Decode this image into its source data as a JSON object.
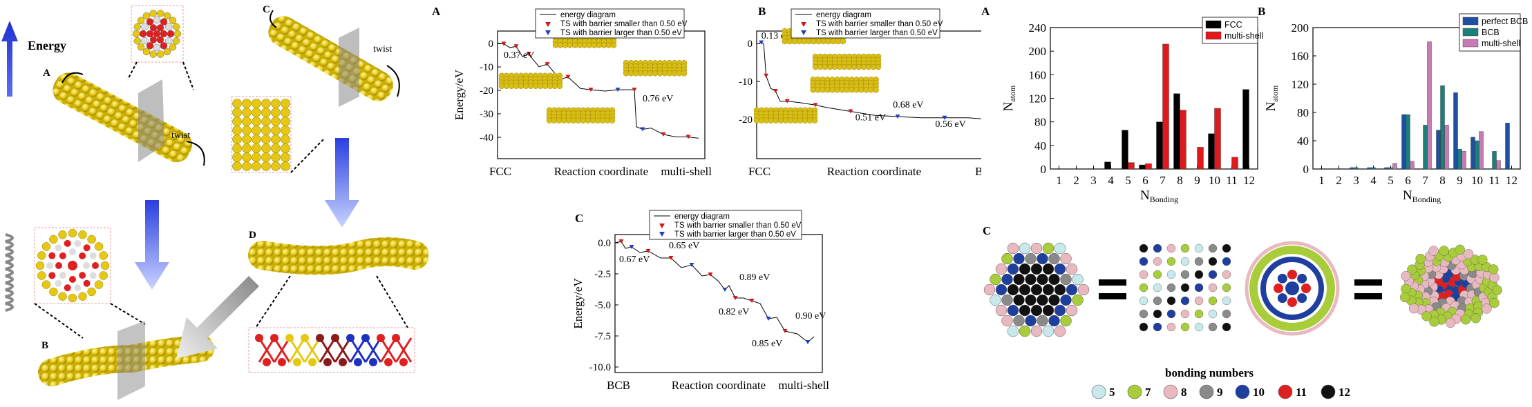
{
  "left_scheme": {
    "energy_label": "Energy",
    "labels": {
      "A": "A",
      "B": "B",
      "C": "C",
      "D": "D"
    },
    "twist_label": "twist",
    "twist_label_c": "twist"
  },
  "reaction_A": {
    "panel_label": "A",
    "ylabel": "Energy/eV",
    "xlabel": "Reaction coordinate",
    "x_start": "FCC",
    "x_end": "multi-shell",
    "yticks": [
      "0",
      "-10",
      "-20",
      "-30",
      "-40"
    ],
    "annotations": [
      "0.37 eV",
      "0.76 eV"
    ],
    "legend": [
      "energy diagram",
      "TS with barrier smaller than 0.50 eV",
      "TS with barrier larger than 0.50 eV"
    ]
  },
  "reaction_B": {
    "panel_label": "B",
    "xlabel": "Reaction coordinate",
    "x_start": "FCC",
    "x_end": "BCB",
    "yticks": [
      "0",
      "-10",
      "-20"
    ],
    "annotations": [
      "0.13 eV",
      "0.68 eV",
      "0.51 eV",
      "0.56 eV"
    ],
    "legend": [
      "energy diagram",
      "TS with barrier smaller than 0.50 eV",
      "TS with barrier larger than 0.50 eV"
    ]
  },
  "reaction_C": {
    "panel_label": "C",
    "ylabel": "Energy/eV",
    "xlabel": "Reaction coordinate",
    "x_start": "BCB",
    "x_end": "multi-shell",
    "yticks": [
      "0.0",
      "-2.5",
      "-5.0",
      "-7.5",
      "-10.0"
    ],
    "annotations": [
      "0.67 eV",
      "0.65 eV",
      "0.89 eV",
      "0.82 eV",
      "0.85 eV",
      "0.90 eV"
    ],
    "legend": [
      "energy diagram",
      "TS with barrier smaller than 0.50 eV",
      "TS with barrier larger than 0.50 eV"
    ]
  },
  "bonding_legend": {
    "title": "bonding numbers",
    "items": [
      {
        "n": "5",
        "color": "#c8e8ec"
      },
      {
        "n": "7",
        "color": "#a8cc3a"
      },
      {
        "n": "8",
        "color": "#e9b9c0"
      },
      {
        "n": "9",
        "color": "#8a8a8a"
      },
      {
        "n": "10",
        "color": "#1f3f9e"
      },
      {
        "n": "11",
        "color": "#e02020"
      },
      {
        "n": "12",
        "color": "#111111"
      }
    ],
    "panel_label": "C"
  },
  "chart_data": [
    {
      "type": "bar",
      "panel_label": "A",
      "ylabel_main": "N",
      "ylabel_sub": "atom",
      "xlabel_main": "N",
      "xlabel_sub": "Bonding",
      "ylim": [
        0,
        240
      ],
      "yticks": [
        "0",
        "40",
        "80",
        "120",
        "160",
        "200",
        "240"
      ],
      "categories": [
        "1",
        "2",
        "3",
        "4",
        "5",
        "6",
        "7",
        "8",
        "9",
        "10",
        "11",
        "12"
      ],
      "series": [
        {
          "name": "FCC",
          "color": "#000000",
          "values": [
            0,
            0,
            0,
            12,
            66,
            7,
            80,
            128,
            0,
            60,
            0,
            135
          ]
        },
        {
          "name": "multi-shell",
          "color": "#e0191c",
          "values": [
            0,
            0,
            0,
            0,
            11,
            9,
            212,
            100,
            37,
            103,
            20,
            0
          ]
        }
      ]
    },
    {
      "type": "bar",
      "panel_label": "B",
      "ylabel_main": "N",
      "ylabel_sub": "atom",
      "xlabel_main": "N",
      "xlabel_sub": "Bonding",
      "ylim": [
        0,
        200
      ],
      "yticks": [
        "0",
        "40",
        "80",
        "120",
        "160",
        "200"
      ],
      "categories": [
        "1",
        "2",
        "3",
        "4",
        "5",
        "6",
        "7",
        "8",
        "9",
        "10",
        "11",
        "12"
      ],
      "series": [
        {
          "name": "perfect BCB",
          "color": "#1f4fa0",
          "values": [
            0,
            0,
            2,
            2,
            2,
            77,
            0,
            55,
            108,
            45,
            0,
            65
          ]
        },
        {
          "name": "BCB",
          "color": "#1b7f7a",
          "values": [
            0,
            0,
            2,
            2,
            2,
            77,
            62,
            118,
            28,
            40,
            25,
            0
          ]
        },
        {
          "name": "multi-shell",
          "color": "#c77ab3",
          "values": [
            0,
            0,
            0,
            0,
            8,
            11,
            180,
            62,
            25,
            53,
            12,
            0
          ]
        }
      ]
    }
  ]
}
